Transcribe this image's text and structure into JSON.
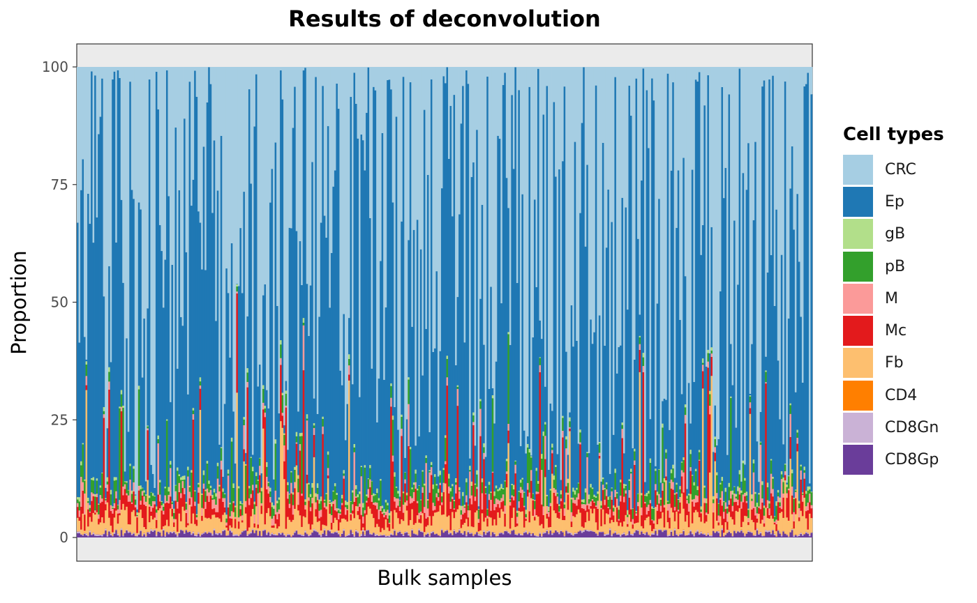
{
  "chart_data": {
    "type": "bar",
    "stacked": true,
    "title": "Results of deconvolution",
    "xlabel": "Bulk samples",
    "ylabel": "Proportion",
    "ylim": [
      0,
      100
    ],
    "yticks": [
      "0",
      "25",
      "50",
      "75",
      "100"
    ],
    "x_tick_labels_shown": false,
    "n_samples": 420,
    "legend": {
      "title": "Cell types",
      "placement": "right"
    },
    "series": [
      {
        "name": "CRC",
        "color": "#A6CEE3"
      },
      {
        "name": "Ep",
        "color": "#1F78B4"
      },
      {
        "name": "gB",
        "color": "#B2DF8A"
      },
      {
        "name": "pB",
        "color": "#33A02C"
      },
      {
        "name": "M",
        "color": "#FB9A99"
      },
      {
        "name": "Mc",
        "color": "#E31A1C"
      },
      {
        "name": "Fb",
        "color": "#FDBF6F"
      },
      {
        "name": "CD4",
        "color": "#FF7F00"
      },
      {
        "name": "CD8Gn",
        "color": "#CAB2D6"
      },
      {
        "name": "CD8Gp",
        "color": "#6A3D9A"
      }
    ],
    "stack_order_bottom_to_top": [
      "CD8Gp",
      "CD8Gn",
      "CD4",
      "Fb",
      "Mc",
      "M",
      "pB",
      "gB",
      "Ep",
      "CRC"
    ],
    "typical_sample_percent": {
      "CD8Gp": 0.8,
      "CD8Gn": 0.2,
      "CD4": 0.05,
      "Fb": 2.5,
      "Mc": 2.5,
      "M": 1.0,
      "pB": 1.5,
      "gB": 0.5,
      "Ep": 45,
      "CRC": 46
    },
    "panel_background": "#EBEBEB",
    "grid": false
  }
}
